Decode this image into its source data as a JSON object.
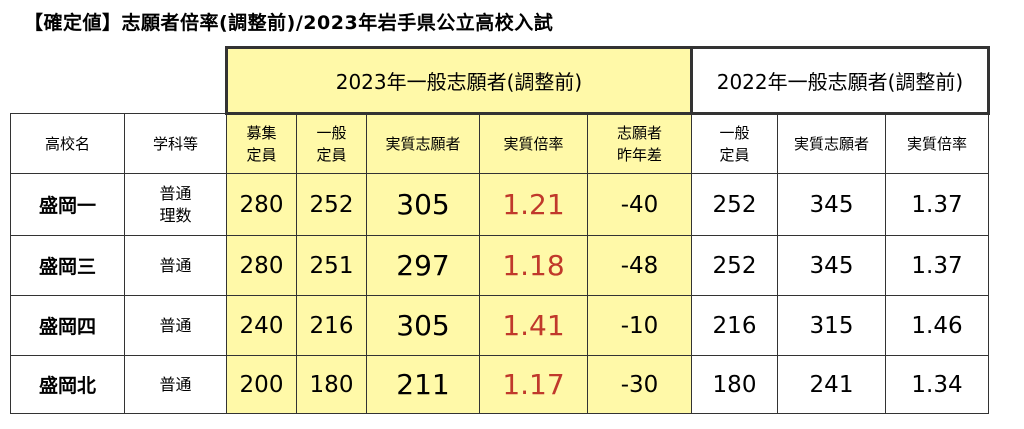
{
  "title": "【確定値】志願者倍率(調整前)/2023年岩手県公立高校入試",
  "bands": {
    "y2023": "2023年一般志願者(調整前)",
    "y2022": "2022年一般志願者(調整前)"
  },
  "headers": {
    "school": "高校名",
    "dept": "学科等",
    "recruit": [
      "募集",
      "定員"
    ],
    "general_capacity": [
      "一般",
      "定員"
    ],
    "applicants": "実質志願者",
    "ratio": "実質倍率",
    "diff": [
      "志願者",
      "昨年差"
    ],
    "general_capacity_2022": [
      "一般",
      "定員"
    ],
    "applicants_2022": "実質志願者",
    "ratio_2022": "実質倍率"
  },
  "rows": [
    {
      "school": "盛岡一",
      "dept": [
        "普通",
        "理数"
      ],
      "recruit": "280",
      "capacity": "252",
      "applicants": "305",
      "ratio": "1.21",
      "diff": "-40",
      "capacity_2022": "252",
      "applicants_2022": "345",
      "ratio_2022": "1.37"
    },
    {
      "school": "盛岡三",
      "dept": [
        "普通"
      ],
      "recruit": "280",
      "capacity": "251",
      "applicants": "297",
      "ratio": "1.18",
      "diff": "-48",
      "capacity_2022": "252",
      "applicants_2022": "345",
      "ratio_2022": "1.37"
    },
    {
      "school": "盛岡四",
      "dept": [
        "普通"
      ],
      "recruit": "240",
      "capacity": "216",
      "applicants": "305",
      "ratio": "1.41",
      "diff": "-10",
      "capacity_2022": "216",
      "applicants_2022": "315",
      "ratio_2022": "1.46"
    },
    {
      "school": "盛岡北",
      "dept": [
        "普通"
      ],
      "recruit": "200",
      "capacity": "180",
      "applicants": "211",
      "ratio": "1.17",
      "diff": "-30",
      "capacity_2022": "180",
      "applicants_2022": "241",
      "ratio_2022": "1.34"
    }
  ],
  "colors": {
    "highlight": "#fff9a8",
    "ratio_text": "#c0392b",
    "border": "#333333"
  }
}
